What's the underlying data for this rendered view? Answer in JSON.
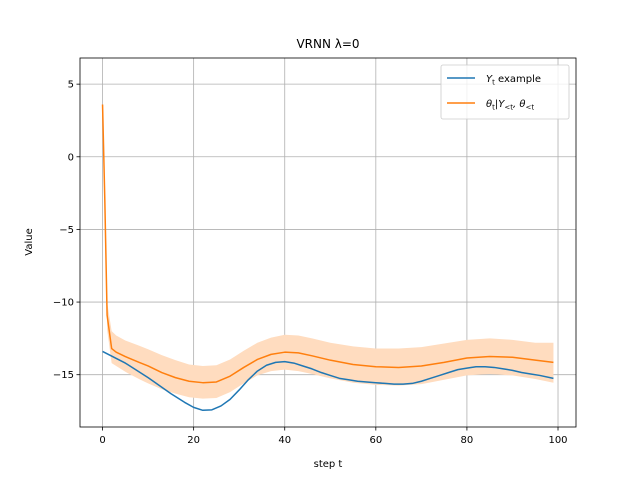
{
  "chart_data": {
    "type": "line",
    "title": "VRNN λ=0",
    "xlabel": "step t",
    "ylabel": "Value",
    "xlim": [
      -4.95,
      103.95
    ],
    "ylim": [
      -18.6,
      6.8
    ],
    "xticks": [
      0,
      20,
      40,
      60,
      80,
      100
    ],
    "xtick_labels": [
      "0",
      "20",
      "40",
      "60",
      "80",
      "100"
    ],
    "yticks": [
      5,
      0,
      -5,
      -10,
      -15
    ],
    "ytick_labels": [
      "5",
      "0",
      "−5",
      "−10",
      "−15"
    ],
    "grid": true,
    "legend_position": "top-right",
    "series": [
      {
        "name": "Y_t example",
        "legend_base": "Y",
        "legend_sub": "t",
        "legend_suffix": " example",
        "color": "#1f77b4",
        "x": [
          0,
          5,
          10,
          15,
          18,
          20,
          22,
          24,
          26,
          28,
          30,
          32,
          34,
          36,
          38,
          40,
          42,
          44,
          46,
          48,
          50,
          52,
          54,
          56,
          58,
          60,
          62,
          64,
          66,
          68,
          70,
          72,
          74,
          76,
          78,
          80,
          82,
          84,
          86,
          88,
          90,
          92,
          94,
          96,
          99
        ],
        "y": [
          -13.4,
          -14.2,
          -15.2,
          -16.3,
          -16.9,
          -17.25,
          -17.45,
          -17.42,
          -17.15,
          -16.7,
          -16.05,
          -15.35,
          -14.75,
          -14.35,
          -14.15,
          -14.1,
          -14.2,
          -14.4,
          -14.6,
          -14.85,
          -15.05,
          -15.25,
          -15.35,
          -15.45,
          -15.5,
          -15.55,
          -15.6,
          -15.65,
          -15.65,
          -15.6,
          -15.45,
          -15.25,
          -15.05,
          -14.85,
          -14.65,
          -14.55,
          -14.45,
          -14.45,
          -14.5,
          -14.6,
          -14.7,
          -14.85,
          -14.95,
          -15.05,
          -15.25
        ]
      },
      {
        "name": "θ_t|Y_<t, θ_<t",
        "legend_base": "θ",
        "legend_sub": "t",
        "legend_mid": "|Y",
        "legend_sub2": "<t",
        "legend_mid2": ", θ",
        "legend_sub3": "<t",
        "color": "#ff7f0e",
        "band_color": "#ffdcbf",
        "x": [
          0,
          0.5,
          1,
          2,
          3,
          5,
          8,
          10,
          13,
          16,
          19,
          22,
          25,
          28,
          31,
          34,
          37,
          40,
          43,
          46,
          50,
          55,
          60,
          65,
          70,
          75,
          80,
          85,
          90,
          95,
          99
        ],
        "y": [
          3.6,
          -3.0,
          -10.9,
          -13.2,
          -13.45,
          -13.75,
          -14.15,
          -14.4,
          -14.85,
          -15.2,
          -15.45,
          -15.55,
          -15.5,
          -15.1,
          -14.5,
          -13.95,
          -13.6,
          -13.45,
          -13.5,
          -13.7,
          -14.0,
          -14.3,
          -14.45,
          -14.5,
          -14.4,
          -14.15,
          -13.85,
          -13.75,
          -13.8,
          -14.0,
          -14.15
        ],
        "lower": [
          3.6,
          -3.0,
          -11.9,
          -14.2,
          -14.4,
          -14.8,
          -15.3,
          -15.6,
          -16.0,
          -16.3,
          -16.55,
          -16.65,
          -16.6,
          -16.2,
          -15.6,
          -15.05,
          -14.75,
          -14.65,
          -14.75,
          -14.95,
          -15.25,
          -15.55,
          -15.7,
          -15.75,
          -15.65,
          -15.35,
          -15.05,
          -14.95,
          -15.05,
          -15.3,
          -15.55
        ],
        "upper": [
          3.6,
          -3.0,
          -10.0,
          -12.0,
          -12.3,
          -12.65,
          -13.0,
          -13.25,
          -13.65,
          -14.0,
          -14.3,
          -14.4,
          -14.35,
          -13.95,
          -13.35,
          -12.8,
          -12.45,
          -12.25,
          -12.3,
          -12.5,
          -12.8,
          -13.05,
          -13.2,
          -13.2,
          -13.1,
          -12.85,
          -12.6,
          -12.5,
          -12.6,
          -12.8,
          -12.8
        ]
      }
    ]
  }
}
